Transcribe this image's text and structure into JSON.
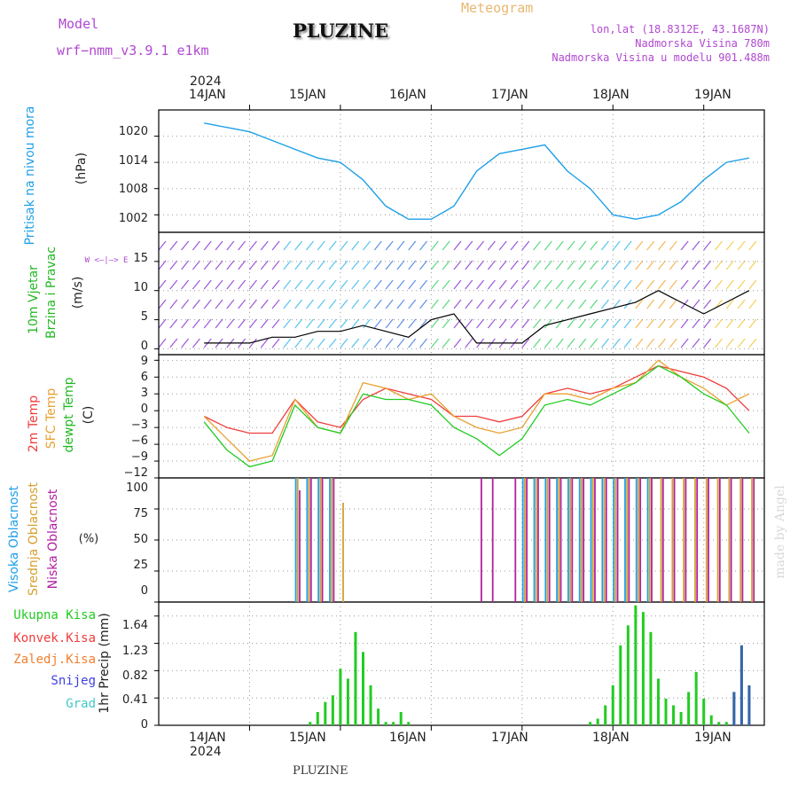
{
  "header": {
    "model_label": "Model",
    "model_name": "wrf−nmm_v3.9.1  e1km",
    "station": "PLUZINE",
    "meteogram": "Meteogram",
    "lonlat": "lon,lat (18.8312E, 43.1687N)",
    "elevation": "Nadmorska Visina 780m",
    "model_elevation": "Nadmorska Visina u modelu 901.488m",
    "footer_station": "PLUZINE",
    "watermark": "made by Angel"
  },
  "colors": {
    "pressure": "#1e9fe8",
    "temp2m": "#f03c3c",
    "sfc_temp": "#e8a030",
    "dewpoint": "#22cc22",
    "high_cloud": "#1e9fe8",
    "mid_cloud": "#d4a030",
    "low_cloud": "#b020a0",
    "precip_total": "#22cc22",
    "snow": "#4040e0",
    "hail": "#40c8c8",
    "header_purple": "#b048d0",
    "header_orange": "#e8b870"
  },
  "time_axis": {
    "year": "2024",
    "days": [
      "14JAN",
      "15JAN",
      "16JAN",
      "17JAN",
      "18JAN",
      "19JAN"
    ]
  },
  "panels": {
    "pressure": {
      "label": "Pritisak na nivou mora",
      "unit": "(hPa)",
      "ticks": [
        "1020",
        "1014",
        "1008",
        "1002"
      ]
    },
    "wind": {
      "label1": "10m Vjetar",
      "label2": "Brzina i Pravac",
      "unit": "(m/s)",
      "ticks": [
        "15",
        "10",
        "5",
        "0"
      ],
      "compass": "W <—|—> E"
    },
    "temp": {
      "label1": "2m Temp",
      "label2": "SFC Temp",
      "label3": "dewpt Temp",
      "unit": "(C)",
      "ticks": [
        "9",
        "6",
        "3",
        "0",
        "−3",
        "−6",
        "−9",
        "−12"
      ]
    },
    "cloud": {
      "label1": "Visoka Oblacnost",
      "label2": "Srednja Oblacnost",
      "label3": "Niska Oblacnost",
      "unit": "(%)",
      "ticks": [
        "100",
        "75",
        "50",
        "25",
        "0"
      ]
    },
    "precip": {
      "legend": [
        "Ukupna Kisa",
        "Konvek.Kisa",
        "Zaledj.Kisa",
        "Snijeg",
        "Grad"
      ],
      "unit": "1hr Precip (mm)",
      "ticks": [
        "1.64",
        "1.23",
        "0.82",
        "0.41",
        "0"
      ]
    }
  },
  "chart_data": [
    {
      "type": "line",
      "name": "pressure",
      "ylabel": "Pritisak na nivou mora (hPa)",
      "ylim": [
        998,
        1026
      ],
      "x_hours": [
        0,
        6,
        12,
        18,
        24,
        30,
        36,
        42,
        48,
        54,
        60,
        66,
        72,
        78,
        84,
        90,
        96,
        102,
        108,
        114,
        120,
        126,
        132,
        138,
        144
      ],
      "y": [
        1023,
        1022,
        1021,
        1019,
        1017,
        1015,
        1014,
        1010,
        1004,
        1001,
        1001,
        1004,
        1012,
        1016,
        1017,
        1018,
        1012,
        1008,
        1002,
        1001,
        1002,
        1005,
        1010,
        1014,
        1015
      ],
      "grid": true
    },
    {
      "type": "line",
      "name": "wind_speed",
      "ylabel": "10m Vjetar Brzina i Pravac (m/s)",
      "ylim": [
        -1,
        20
      ],
      "x_hours": [
        0,
        6,
        12,
        18,
        24,
        30,
        36,
        42,
        48,
        54,
        60,
        66,
        72,
        78,
        84,
        90,
        96,
        102,
        108,
        114,
        120,
        126,
        132,
        138,
        144
      ],
      "y": [
        1,
        1,
        1,
        2,
        2,
        3,
        3,
        4,
        3,
        2,
        5,
        6,
        1,
        1,
        1,
        4,
        5,
        6,
        7,
        8,
        10,
        8,
        6,
        8,
        10
      ],
      "grid": true
    },
    {
      "type": "line",
      "name": "temperature",
      "ylabel": "(C)",
      "ylim": [
        -12,
        10
      ],
      "x_hours": [
        0,
        6,
        12,
        18,
        24,
        30,
        36,
        42,
        48,
        54,
        60,
        66,
        72,
        78,
        84,
        90,
        96,
        102,
        108,
        114,
        120,
        126,
        132,
        138,
        144
      ],
      "series": [
        {
          "name": "2m Temp",
          "values": [
            -1,
            -3,
            -4,
            -4,
            2,
            -2,
            -3,
            2,
            4,
            3,
            2,
            -1,
            -1,
            -2,
            -1,
            3,
            4,
            3,
            4,
            6,
            8,
            7,
            6,
            4,
            0
          ]
        },
        {
          "name": "SFC Temp",
          "values": [
            -1,
            -5,
            -9,
            -8,
            2,
            -3,
            -4,
            5,
            4,
            2,
            3,
            -1,
            -3,
            -4,
            -3,
            3,
            3,
            2,
            4,
            5,
            9,
            6,
            4,
            1,
            3
          ]
        },
        {
          "name": "dewpt Temp",
          "values": [
            -2,
            -7,
            -10,
            -9,
            1,
            -3,
            -4,
            3,
            2,
            2,
            1,
            -3,
            -5,
            -8,
            -5,
            1,
            2,
            1,
            3,
            5,
            8,
            6,
            3,
            1,
            -4
          ]
        }
      ],
      "grid": true
    },
    {
      "type": "bar",
      "name": "cloud_cover",
      "ylabel": "(%)",
      "ylim": [
        0,
        100
      ],
      "x_hours": [
        24,
        27,
        30,
        33,
        36,
        72,
        75,
        78,
        81,
        84,
        87,
        90,
        93,
        96,
        99,
        102,
        105,
        108,
        111,
        114,
        117,
        120,
        123,
        126,
        129,
        132,
        135,
        138,
        141,
        144
      ],
      "series": [
        {
          "name": "Visoka Oblacnost",
          "values": [
            100,
            100,
            100,
            100,
            0,
            0,
            0,
            0,
            0,
            100,
            100,
            100,
            100,
            100,
            100,
            100,
            100,
            100,
            100,
            100,
            100,
            0,
            0,
            0,
            0,
            0,
            0,
            0,
            0,
            0
          ]
        },
        {
          "name": "Srednja Oblacnost",
          "values": [
            100,
            100,
            100,
            100,
            80,
            0,
            0,
            0,
            0,
            100,
            100,
            100,
            100,
            100,
            100,
            100,
            100,
            100,
            100,
            100,
            100,
            100,
            100,
            100,
            100,
            100,
            100,
            100,
            100,
            100
          ]
        },
        {
          "name": "Niska Oblacnost",
          "values": [
            90,
            100,
            100,
            100,
            0,
            100,
            100,
            0,
            100,
            100,
            100,
            100,
            100,
            100,
            100,
            100,
            100,
            100,
            100,
            100,
            100,
            100,
            100,
            100,
            100,
            100,
            100,
            100,
            100,
            100
          ]
        }
      ],
      "grid": true
    },
    {
      "type": "bar",
      "name": "precipitation",
      "ylabel": "1hr Precip (mm)",
      "ylim": [
        0,
        1.85
      ],
      "x_hours": [
        28,
        30,
        32,
        34,
        36,
        38,
        40,
        42,
        44,
        46,
        48,
        50,
        52,
        54,
        56,
        58,
        60,
        62,
        64,
        66,
        68,
        70,
        72,
        74,
        76,
        78,
        80,
        82,
        84,
        86,
        88,
        90,
        92,
        94,
        96,
        98,
        100,
        102,
        104,
        106,
        108,
        110,
        112,
        114,
        116,
        118,
        120,
        122,
        124,
        126,
        128,
        130,
        132,
        134,
        136,
        138,
        140,
        142,
        144
      ],
      "series": [
        {
          "name": "Ukupna Kisa",
          "values": [
            0.05,
            0.2,
            0.35,
            0.45,
            0.85,
            0.7,
            1.4,
            1.1,
            0.6,
            0.25,
            0.05,
            0.05,
            0.2,
            0.05,
            0,
            0,
            0,
            0,
            0,
            0,
            0,
            0,
            0,
            0,
            0,
            0,
            0,
            0,
            0,
            0,
            0,
            0,
            0,
            0,
            0,
            0,
            0,
            0.05,
            0.1,
            0.3,
            0.6,
            1.2,
            1.5,
            1.8,
            1.7,
            1.4,
            0.7,
            0.4,
            0.3,
            0.2,
            0.5,
            0.8,
            0.4,
            0.15,
            0.05,
            0.05,
            0.5,
            1.2,
            0.6
          ]
        },
        {
          "name": "Snijeg",
          "values": [
            0,
            0,
            0,
            0,
            0,
            0,
            0,
            0,
            0,
            0,
            0,
            0,
            0,
            0,
            0,
            0,
            0,
            0,
            0,
            0,
            0,
            0,
            0,
            0,
            0,
            0,
            0,
            0,
            0,
            0,
            0,
            0,
            0,
            0,
            0,
            0,
            0,
            0,
            0,
            0,
            0,
            0,
            0,
            0,
            0,
            0,
            0,
            0,
            0,
            0,
            0,
            0,
            0,
            0,
            0,
            0,
            0.5,
            1.2,
            0.6
          ]
        }
      ],
      "grid": true
    }
  ]
}
